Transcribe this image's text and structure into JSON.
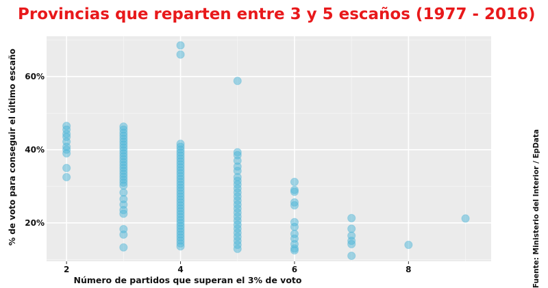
{
  "chart_data": {
    "type": "scatter",
    "title": "Provincias que reparten entre 3 y 5 escaños (1977 - 2016)",
    "xlabel": "Número de partidos que superan el 3% de voto",
    "ylabel": "% de voto para conseguir el último escaño",
    "source": "Fuente: Ministerio del Interior / EpData",
    "xlim": [
      1.65,
      9.45
    ],
    "ylim": [
      9.5,
      71
    ],
    "x_ticks": [
      2,
      4,
      6,
      8
    ],
    "x_tick_labels": [
      "2",
      "4",
      "6",
      "8"
    ],
    "y_ticks": [
      20,
      40,
      60
    ],
    "y_tick_labels": [
      "20%",
      "40%",
      "60%"
    ],
    "grid": true,
    "point_color": "#4db5d7",
    "panel_color": "#ebebeb",
    "title_color": "#e8191b",
    "points": [
      [
        2,
        46.5
      ],
      [
        2,
        45.5
      ],
      [
        2,
        44.3
      ],
      [
        2,
        43.5
      ],
      [
        2,
        42.2
      ],
      [
        2,
        40.8
      ],
      [
        2,
        40.0
      ],
      [
        2,
        39.0
      ],
      [
        2,
        35.0
      ],
      [
        2,
        32.5
      ],
      [
        3,
        46.3
      ],
      [
        3,
        45.5
      ],
      [
        3,
        44.6
      ],
      [
        3,
        43.8
      ],
      [
        3,
        43.0
      ],
      [
        3,
        42.2
      ],
      [
        3,
        41.4
      ],
      [
        3,
        40.6
      ],
      [
        3,
        39.8
      ],
      [
        3,
        39.0
      ],
      [
        3,
        38.2
      ],
      [
        3,
        37.4
      ],
      [
        3,
        36.6
      ],
      [
        3,
        35.8
      ],
      [
        3,
        35.0
      ],
      [
        3,
        34.2
      ],
      [
        3,
        33.4
      ],
      [
        3,
        32.6
      ],
      [
        3,
        31.8
      ],
      [
        3,
        31.0
      ],
      [
        3,
        30.2
      ],
      [
        3,
        28.3
      ],
      [
        3,
        26.5
      ],
      [
        3,
        25.0
      ],
      [
        3,
        23.5
      ],
      [
        3,
        22.5
      ],
      [
        3,
        18.3
      ],
      [
        3,
        16.8
      ],
      [
        3,
        13.3
      ],
      [
        4,
        68.5
      ],
      [
        4,
        66.0
      ],
      [
        4,
        41.6
      ],
      [
        4,
        40.8
      ],
      [
        4,
        40.0
      ],
      [
        4,
        39.2
      ],
      [
        4,
        38.4
      ],
      [
        4,
        37.6
      ],
      [
        4,
        36.8
      ],
      [
        4,
        36.0
      ],
      [
        4,
        35.2
      ],
      [
        4,
        34.4
      ],
      [
        4,
        33.6
      ],
      [
        4,
        32.8
      ],
      [
        4,
        32.0
      ],
      [
        4,
        31.2
      ],
      [
        4,
        30.4
      ],
      [
        4,
        29.6
      ],
      [
        4,
        28.8
      ],
      [
        4,
        28.0
      ],
      [
        4,
        27.2
      ],
      [
        4,
        26.4
      ],
      [
        4,
        25.6
      ],
      [
        4,
        24.8
      ],
      [
        4,
        24.0
      ],
      [
        4,
        23.2
      ],
      [
        4,
        22.4
      ],
      [
        4,
        21.6
      ],
      [
        4,
        20.8
      ],
      [
        4,
        20.0
      ],
      [
        4,
        19.2
      ],
      [
        4,
        18.4
      ],
      [
        4,
        17.6
      ],
      [
        4,
        16.8
      ],
      [
        4,
        16.0
      ],
      [
        4,
        15.2
      ],
      [
        4,
        14.4
      ],
      [
        4,
        13.6
      ],
      [
        5,
        58.8
      ],
      [
        5,
        39.3
      ],
      [
        5,
        38.5
      ],
      [
        5,
        37.0
      ],
      [
        5,
        35.4
      ],
      [
        5,
        34.2
      ],
      [
        5,
        32.5
      ],
      [
        5,
        31.5
      ],
      [
        5,
        30.5
      ],
      [
        5,
        29.4
      ],
      [
        5,
        28.3
      ],
      [
        5,
        27.2
      ],
      [
        5,
        26.1
      ],
      [
        5,
        25.0
      ],
      [
        5,
        23.9
      ],
      [
        5,
        22.8
      ],
      [
        5,
        21.7
      ],
      [
        5,
        20.6
      ],
      [
        5,
        19.5
      ],
      [
        5,
        18.4
      ],
      [
        5,
        17.3
      ],
      [
        5,
        16.2
      ],
      [
        5,
        15.1
      ],
      [
        5,
        14.0
      ],
      [
        5,
        12.9
      ],
      [
        6,
        31.2
      ],
      [
        6,
        29.0
      ],
      [
        6,
        28.5
      ],
      [
        6,
        25.6
      ],
      [
        6,
        24.8
      ],
      [
        6,
        20.2
      ],
      [
        6,
        18.9
      ],
      [
        6,
        17.0
      ],
      [
        6,
        15.7
      ],
      [
        6,
        14.2
      ],
      [
        6,
        13.0
      ],
      [
        6,
        12.5
      ],
      [
        7,
        21.3
      ],
      [
        7,
        18.4
      ],
      [
        7,
        16.5
      ],
      [
        7,
        15.1
      ],
      [
        7,
        14.2
      ],
      [
        7,
        11.0
      ],
      [
        8,
        14.0
      ],
      [
        9,
        21.2
      ]
    ]
  }
}
